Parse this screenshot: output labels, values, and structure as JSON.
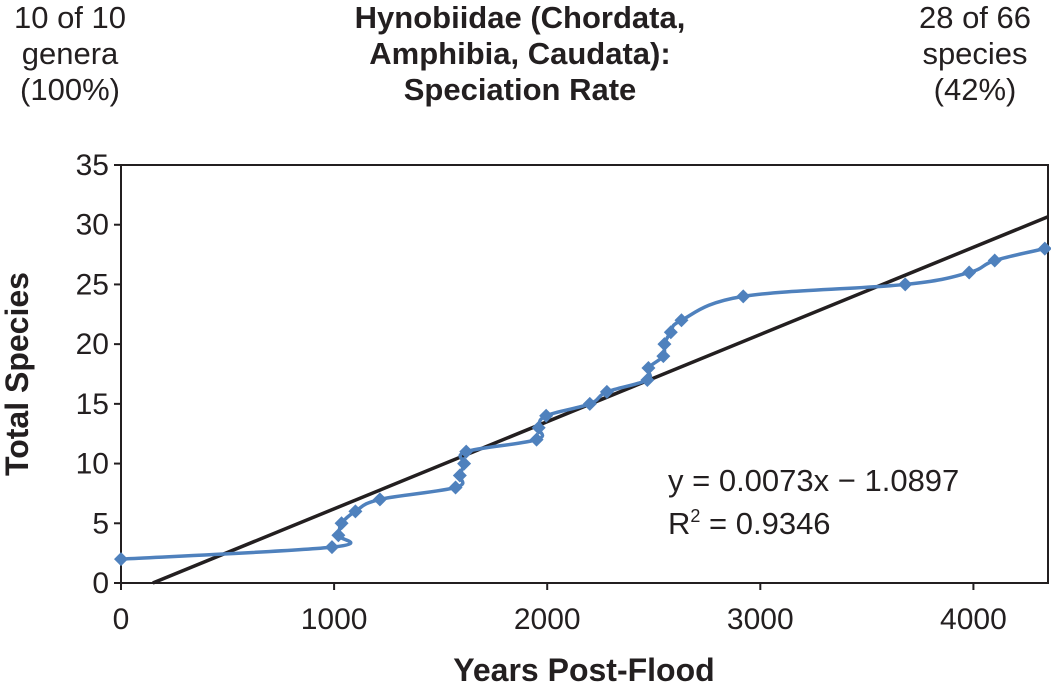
{
  "header": {
    "left": [
      "10 of 10",
      "genera",
      "(100%)"
    ],
    "title": [
      "Hynobiidae (Chordata,",
      "Amphibia, Caudata):",
      "Speciation Rate"
    ],
    "right": [
      "28 of 66",
      "species",
      "(42%)"
    ]
  },
  "chart_data": {
    "type": "scatter",
    "title": "Hynobiidae (Chordata, Amphibia, Caudata): Speciation Rate",
    "xlabel": "Years Post-Flood",
    "ylabel": "Total Species",
    "xlim": [
      0,
      4350
    ],
    "ylim": [
      0,
      35
    ],
    "x_ticks": [
      "0",
      "1000",
      "2000",
      "3000",
      "4000"
    ],
    "y_ticks": [
      "0",
      "5",
      "10",
      "15",
      "20",
      "25",
      "30",
      "35"
    ],
    "grid": false,
    "legend": "none",
    "series": [
      {
        "color": "#4f81bd",
        "marker": "diamond",
        "line": "smooth",
        "x": [
          0,
          990,
          1020,
          1035,
          1100,
          1215,
          1570,
          1590,
          1610,
          1620,
          1950,
          1960,
          1995,
          2200,
          2280,
          2470,
          2475,
          2545,
          2550,
          2580,
          2630,
          2920,
          3680,
          3980,
          4100,
          4335
        ],
        "y": [
          2,
          3,
          4,
          5,
          6,
          7,
          8,
          9,
          10,
          11,
          12,
          13,
          14,
          15,
          16,
          17,
          18,
          19,
          20,
          21,
          22,
          24,
          25,
          26,
          27,
          28
        ]
      }
    ],
    "trendline": {
      "slope": 0.0073,
      "intercept": -1.0897,
      "color": "#231f20",
      "equation": "y = 0.0073x − 1.0897",
      "r2_label": "R",
      "r2_sup": "2",
      "r2_value": " = 0.9346"
    }
  }
}
